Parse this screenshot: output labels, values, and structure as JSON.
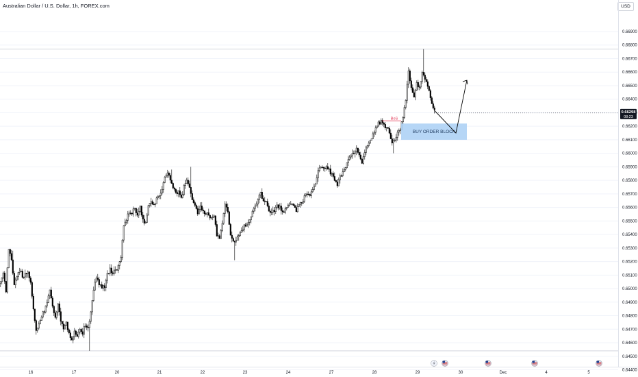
{
  "header": {
    "title": "Australian Dollar / U.S. Dollar, 1h, FOREX.com",
    "currency": "USD"
  },
  "price_tag": {
    "price": "0.66298",
    "countdown": "08:23"
  },
  "annotations": {
    "bos": "BoS",
    "order_block": "BUY ORDER BLOCK"
  },
  "colors": {
    "candle": "#000000",
    "candle_up_fill": "#ffffff",
    "bos": "#e0294a",
    "order_block": "#a9cff5",
    "price_tag": "#131722",
    "grid": "#f0f3fa"
  },
  "event_icons": [
    "lightning-icon",
    "us-flag-icon",
    "us-flag-icon",
    "us-flag-icon",
    "australia-flag-icon"
  ],
  "chart_data": {
    "type": "candlestick",
    "symbol": "AUDUSD",
    "interval": "1h",
    "yaxis": {
      "ticks": [
        "0.66900",
        "0.66800",
        "0.66700",
        "0.66600",
        "0.66500",
        "0.66400",
        "0.66300",
        "0.66200",
        "0.66100",
        "0.66000",
        "0.65900",
        "0.65800",
        "0.65700",
        "0.65600",
        "0.65500",
        "0.65400",
        "0.65300",
        "0.65200",
        "0.65100",
        "0.65000",
        "0.64900",
        "0.64800",
        "0.64700",
        "0.64600",
        "0.64500",
        "0.64400"
      ],
      "range": [
        0.6439,
        0.6698
      ]
    },
    "xaxis": {
      "ticks": [
        "16",
        "17",
        "20",
        "21",
        "22",
        "23",
        "24",
        "27",
        "28",
        "29",
        "30",
        "Dec",
        "4",
        "5"
      ]
    },
    "horizontal_lines": [
      0.6677,
      0.6454
    ],
    "series": [
      {
        "ohlc_path": [
          [
            0,
            0.6504
          ],
          [
            6,
            0.6512
          ],
          [
            10,
            0.6498
          ],
          [
            14,
            0.653
          ],
          [
            18,
            0.652
          ],
          [
            22,
            0.6502
          ],
          [
            26,
            0.651
          ],
          [
            30,
            0.6514
          ],
          [
            34,
            0.6509
          ],
          [
            38,
            0.651
          ],
          [
            42,
            0.6512
          ],
          [
            46,
            0.6504
          ],
          [
            50,
            0.6486
          ],
          [
            54,
            0.6468
          ],
          [
            58,
            0.6474
          ],
          [
            62,
            0.648
          ],
          [
            66,
            0.6484
          ],
          [
            70,
            0.649
          ],
          [
            74,
            0.65
          ],
          [
            78,
            0.6488
          ],
          [
            82,
            0.6478
          ],
          [
            86,
            0.649
          ],
          [
            90,
            0.6476
          ],
          [
            94,
            0.647
          ],
          [
            98,
            0.6474
          ],
          [
            102,
            0.6468
          ],
          [
            106,
            0.6462
          ],
          [
            110,
            0.6468
          ],
          [
            114,
            0.6466
          ],
          [
            118,
            0.647
          ],
          [
            122,
            0.6467
          ],
          [
            126,
            0.6474
          ],
          [
            130,
            0.647
          ],
          [
            134,
            0.6482
          ],
          [
            138,
            0.65
          ],
          [
            142,
            0.6508
          ],
          [
            146,
            0.6504
          ],
          [
            150,
            0.65
          ],
          [
            154,
            0.6502
          ],
          [
            158,
            0.651
          ],
          [
            162,
            0.6514
          ],
          [
            166,
            0.6512
          ],
          [
            170,
            0.6514
          ],
          [
            174,
            0.6516
          ],
          [
            178,
            0.6524
          ],
          [
            182,
            0.6545
          ],
          [
            186,
            0.6552
          ],
          [
            190,
            0.6556
          ],
          [
            194,
            0.6555
          ],
          [
            198,
            0.656
          ],
          [
            202,
            0.6554
          ],
          [
            206,
            0.656
          ],
          [
            210,
            0.655
          ],
          [
            214,
            0.6548
          ],
          [
            218,
            0.656
          ],
          [
            222,
            0.6564
          ],
          [
            226,
            0.6562
          ],
          [
            230,
            0.6566
          ],
          [
            234,
            0.6568
          ],
          [
            238,
            0.6574
          ],
          [
            242,
            0.6582
          ],
          [
            246,
            0.6586
          ],
          [
            250,
            0.658
          ],
          [
            254,
            0.6574
          ],
          [
            258,
            0.657
          ],
          [
            262,
            0.6572
          ],
          [
            266,
            0.6566
          ],
          [
            270,
            0.6576
          ],
          [
            274,
            0.658
          ],
          [
            278,
            0.6575
          ],
          [
            282,
            0.6566
          ],
          [
            286,
            0.6562
          ],
          [
            290,
            0.6556
          ],
          [
            294,
            0.656
          ],
          [
            298,
            0.6556
          ],
          [
            302,
            0.6556
          ],
          [
            306,
            0.6554
          ],
          [
            310,
            0.6552
          ],
          [
            314,
            0.6554
          ],
          [
            318,
            0.654
          ],
          [
            322,
            0.6536
          ],
          [
            326,
            0.6548
          ],
          [
            330,
            0.6562
          ],
          [
            334,
            0.6556
          ],
          [
            338,
            0.654
          ],
          [
            342,
            0.6534
          ],
          [
            346,
            0.6536
          ],
          [
            350,
            0.654
          ],
          [
            354,
            0.6542
          ],
          [
            358,
            0.6546
          ],
          [
            362,
            0.6548
          ],
          [
            366,
            0.655
          ],
          [
            370,
            0.6556
          ],
          [
            374,
            0.656
          ],
          [
            378,
            0.6566
          ],
          [
            382,
            0.657
          ],
          [
            386,
            0.6566
          ],
          [
            390,
            0.6564
          ],
          [
            394,
            0.6558
          ],
          [
            398,
            0.6556
          ],
          [
            402,
            0.6558
          ],
          [
            406,
            0.6562
          ],
          [
            410,
            0.656
          ],
          [
            414,
            0.6556
          ],
          [
            418,
            0.6558
          ],
          [
            422,
            0.6562
          ],
          [
            426,
            0.6564
          ],
          [
            430,
            0.656
          ],
          [
            434,
            0.6558
          ],
          [
            438,
            0.6562
          ],
          [
            442,
            0.6564
          ],
          [
            446,
            0.6568
          ],
          [
            450,
            0.657
          ],
          [
            454,
            0.6568
          ],
          [
            458,
            0.6574
          ],
          [
            462,
            0.6578
          ],
          [
            466,
            0.6586
          ],
          [
            470,
            0.659
          ],
          [
            474,
            0.6588
          ],
          [
            478,
            0.659
          ],
          [
            482,
            0.6588
          ],
          [
            486,
            0.6584
          ],
          [
            490,
            0.658
          ],
          [
            494,
            0.6576
          ],
          [
            498,
            0.6582
          ],
          [
            502,
            0.6586
          ],
          [
            506,
            0.659
          ],
          [
            510,
            0.6594
          ],
          [
            514,
            0.6598
          ],
          [
            518,
            0.66
          ],
          [
            522,
            0.6604
          ],
          [
            526,
            0.6598
          ],
          [
            530,
            0.6594
          ],
          [
            534,
            0.6602
          ],
          [
            538,
            0.6606
          ],
          [
            542,
            0.661
          ],
          [
            546,
            0.6614
          ],
          [
            550,
            0.6618
          ],
          [
            554,
            0.6622
          ],
          [
            558,
            0.6624
          ],
          [
            562,
            0.662
          ],
          [
            566,
            0.6618
          ],
          [
            570,
            0.6616
          ],
          [
            574,
            0.6608
          ],
          [
            578,
            0.661
          ],
          [
            582,
            0.6616
          ],
          [
            586,
            0.6618
          ],
          [
            590,
            0.6626
          ],
          [
            594,
            0.664
          ],
          [
            598,
            0.666
          ],
          [
            602,
            0.6648
          ],
          [
            606,
            0.6642
          ],
          [
            610,
            0.6652
          ],
          [
            614,
            0.6648
          ],
          [
            618,
            0.666
          ],
          [
            622,
            0.6656
          ],
          [
            626,
            0.665
          ],
          [
            630,
            0.664
          ],
          [
            634,
            0.6632
          ]
        ],
        "highs_lows": {
          "recent_high": 0.6677,
          "pre_rally_low": 0.6454
        }
      }
    ],
    "overlays": {
      "order_block_zone": {
        "y_top": 0.6622,
        "y_bottom": 0.661,
        "x_from_bar": 586,
        "x_to_bar": 682
      },
      "projection": [
        [
          634,
          0.6632
        ],
        [
          666,
          0.6615
        ],
        [
          682,
          0.6654
        ]
      ],
      "bos_level": 0.6624
    }
  }
}
